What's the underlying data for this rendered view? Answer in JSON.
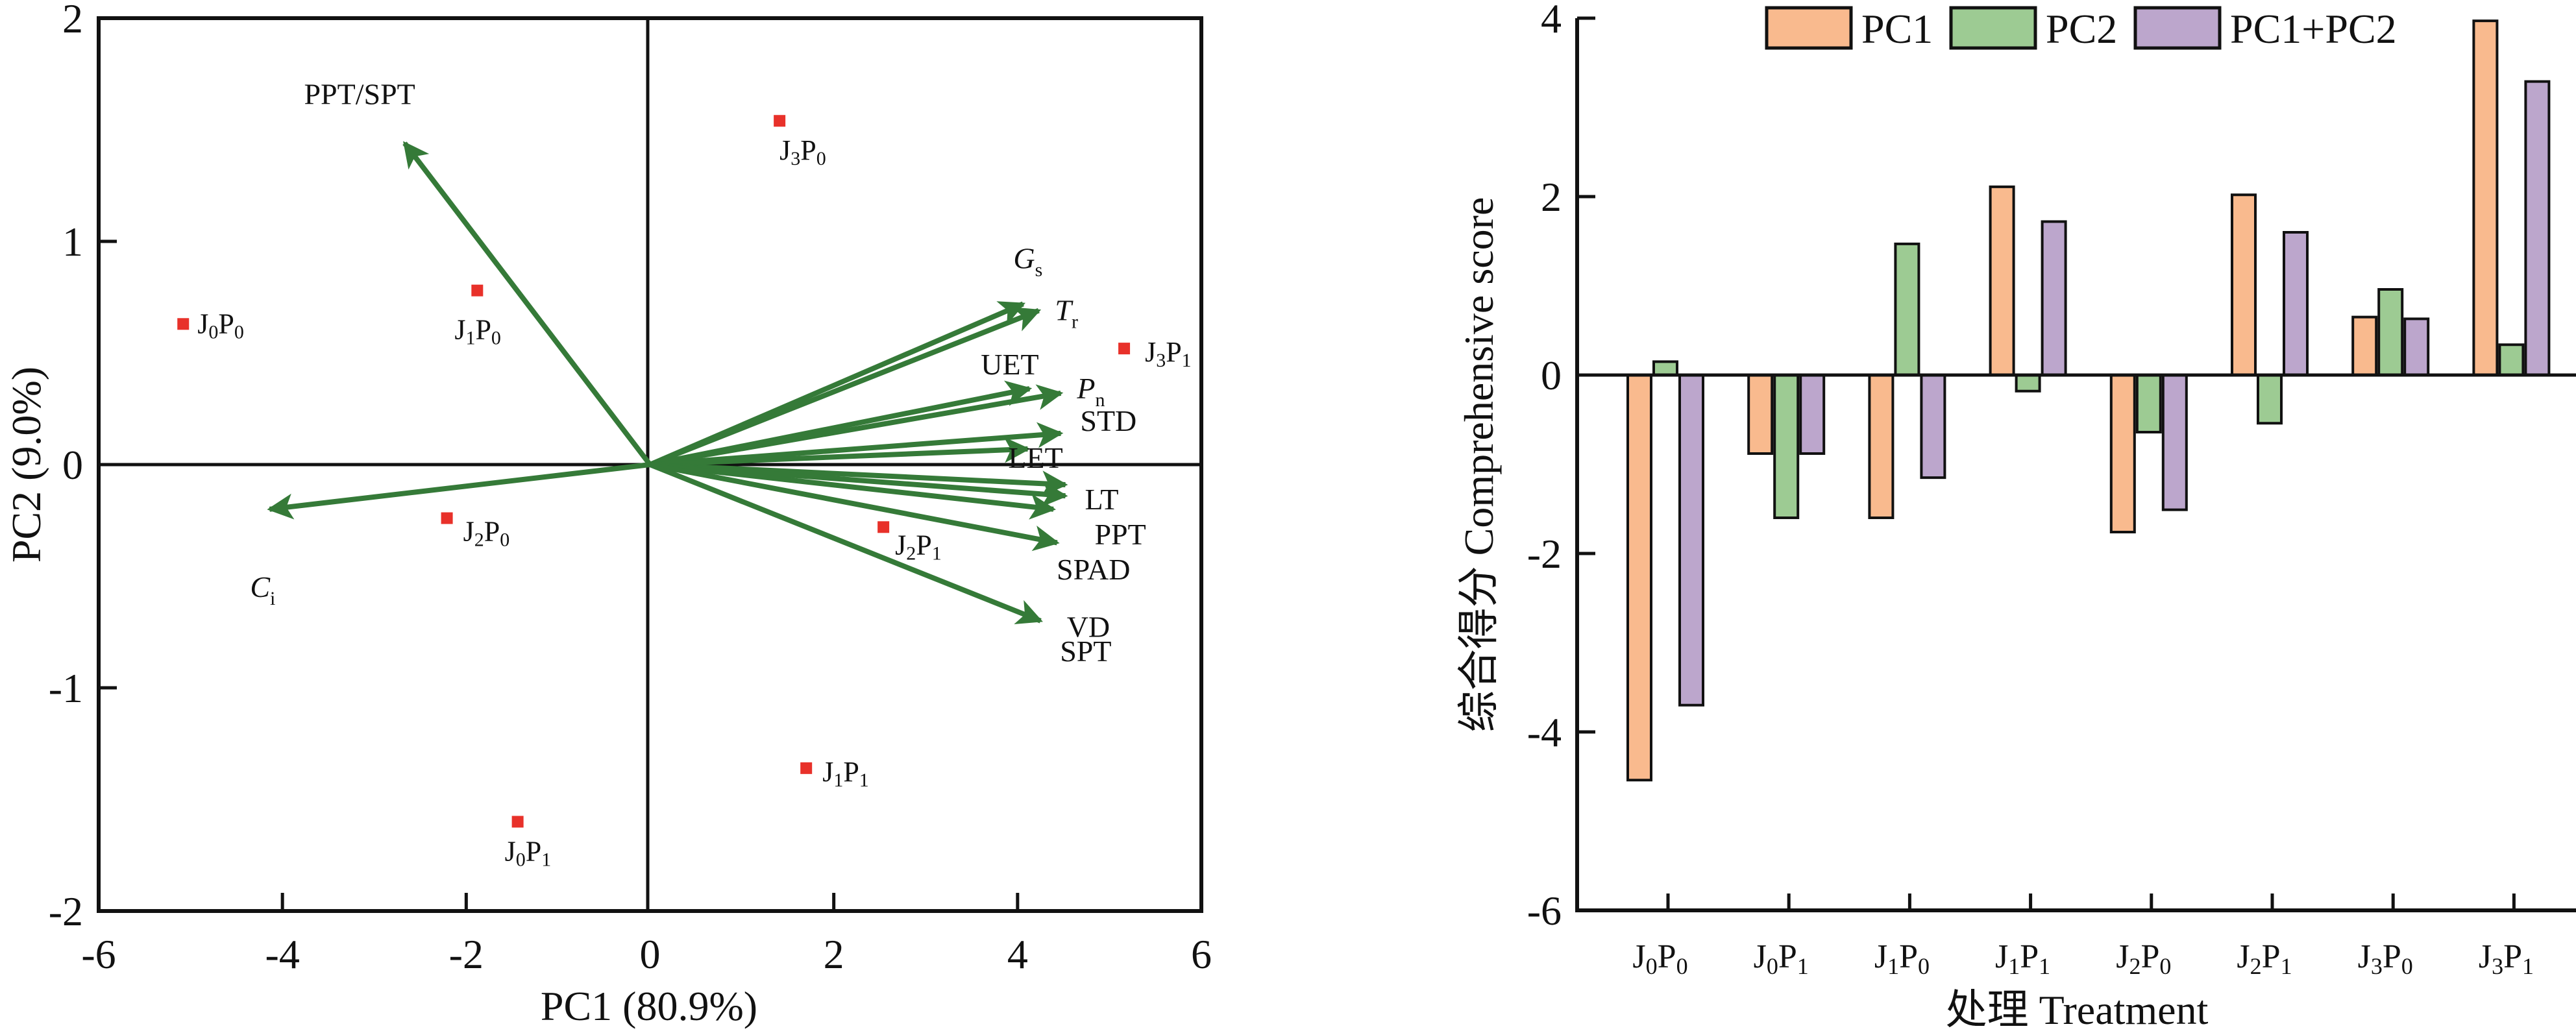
{
  "figure": {
    "panels": [
      "pca-biplot",
      "score-bar-chart"
    ]
  },
  "chart_data": [
    {
      "type": "scatter",
      "subtype": "biplot",
      "title": "",
      "xlabel": "PC1 (80.9%)",
      "ylabel": "PC2 (9.0%)",
      "xlim": [
        -6,
        6
      ],
      "ylim": [
        -2,
        2
      ],
      "xticks": [
        "-6",
        "-4",
        "-2",
        "0",
        "2",
        "4",
        "6"
      ],
      "yticks": [
        "-2",
        "-1",
        "0",
        "1",
        "2"
      ],
      "xtick_values": [
        -6,
        -4,
        -2,
        0,
        2,
        4,
        6
      ],
      "ytick_values": [
        -2,
        -1,
        0,
        1,
        2
      ],
      "grid": false,
      "marker_color": "#E8312A",
      "arrow_color": "#357A38",
      "points": [
        {
          "label": "J",
          "sub1": "0",
          "mid": "P",
          "sub2": "0",
          "name": "J0P0",
          "x": -5.08,
          "y": 0.63
        },
        {
          "label": "J",
          "sub1": "0",
          "mid": "P",
          "sub2": "1",
          "name": "J0P1",
          "x": -1.44,
          "y": -1.6
        },
        {
          "label": "J",
          "sub1": "1",
          "mid": "P",
          "sub2": "0",
          "name": "J1P0",
          "x": -1.88,
          "y": 0.78
        },
        {
          "label": "J",
          "sub1": "1",
          "mid": "P",
          "sub2": "1",
          "name": "J1P1",
          "x": 1.7,
          "y": -1.36
        },
        {
          "label": "J",
          "sub1": "2",
          "mid": "P",
          "sub2": "0",
          "name": "J2P0",
          "x": -2.21,
          "y": -0.24
        },
        {
          "label": "J",
          "sub1": "2",
          "mid": "P",
          "sub2": "1",
          "name": "J2P1",
          "x": 2.54,
          "y": -0.28
        },
        {
          "label": "J",
          "sub1": "3",
          "mid": "P",
          "sub2": "0",
          "name": "J3P0",
          "x": 1.41,
          "y": 1.54
        },
        {
          "label": "J",
          "sub1": "3",
          "mid": "P",
          "sub2": "1",
          "name": "J3P1",
          "x": 5.16,
          "y": 0.52
        }
      ],
      "loadings": [
        {
          "label": "PPT/SPT",
          "sub": "",
          "italic": false,
          "x": -2.67,
          "y": 1.44
        },
        {
          "label": "C",
          "sub": "i",
          "italic": true,
          "x": -4.14,
          "y": -0.2
        },
        {
          "label": "G",
          "sub": "s",
          "italic": true,
          "x": 4.06,
          "y": 0.72
        },
        {
          "label": "T",
          "sub": "r",
          "italic": true,
          "x": 4.23,
          "y": 0.69
        },
        {
          "label": "UET",
          "sub": "",
          "italic": false,
          "x": 4.13,
          "y": 0.34
        },
        {
          "label": "P",
          "sub": "n",
          "italic": true,
          "x": 4.47,
          "y": 0.32
        },
        {
          "label": "STD",
          "sub": "",
          "italic": false,
          "x": 4.47,
          "y": 0.14
        },
        {
          "label": "LET",
          "sub": "",
          "italic": false,
          "x": 4.11,
          "y": 0.07
        },
        {
          "label": "LT",
          "sub": "",
          "italic": false,
          "x": 4.52,
          "y": -0.09
        },
        {
          "label": "PPT",
          "sub": "",
          "italic": false,
          "x": 4.52,
          "y": -0.14
        },
        {
          "label": "SPAD",
          "sub": "",
          "italic": false,
          "x": 4.39,
          "y": -0.2
        },
        {
          "label": "VD",
          "sub": "",
          "italic": false,
          "x": 4.43,
          "y": -0.35
        },
        {
          "label": "SPT",
          "sub": "",
          "italic": false,
          "x": 4.25,
          "y": -0.7
        }
      ]
    },
    {
      "type": "bar",
      "title": "",
      "xlabel": "处理 Treatment",
      "ylabel": "综合得分 Comprehensive score",
      "ylim": [
        -6,
        4
      ],
      "yticks": [
        "-6",
        "-4",
        "-2",
        "0",
        "2",
        "4"
      ],
      "ytick_values": [
        -6,
        -4,
        -2,
        0,
        2,
        4
      ],
      "grid": false,
      "legend_position": "top",
      "categories": [
        {
          "main1": "J",
          "sub1": "0",
          "main2": "P",
          "sub2": "0",
          "name": "J0P0"
        },
        {
          "main1": "J",
          "sub1": "0",
          "main2": "P",
          "sub2": "1",
          "name": "J0P1"
        },
        {
          "main1": "J",
          "sub1": "1",
          "main2": "P",
          "sub2": "0",
          "name": "J1P0"
        },
        {
          "main1": "J",
          "sub1": "1",
          "main2": "P",
          "sub2": "1",
          "name": "J1P1"
        },
        {
          "main1": "J",
          "sub1": "2",
          "main2": "P",
          "sub2": "0",
          "name": "J2P0"
        },
        {
          "main1": "J",
          "sub1": "2",
          "main2": "P",
          "sub2": "1",
          "name": "J2P1"
        },
        {
          "main1": "J",
          "sub1": "3",
          "main2": "P",
          "sub2": "0",
          "name": "J3P0"
        },
        {
          "main1": "J",
          "sub1": "3",
          "main2": "P",
          "sub2": "1",
          "name": "J3P1"
        }
      ],
      "series": [
        {
          "name": "PC1",
          "color": "#F9BA8E",
          "values": [
            -4.54,
            -0.88,
            -1.6,
            2.11,
            -1.76,
            2.02,
            0.65,
            3.97
          ]
        },
        {
          "name": "PC2",
          "color": "#9DCB93",
          "values": [
            0.15,
            -1.6,
            1.47,
            -0.18,
            -0.64,
            -0.54,
            0.96,
            0.34
          ]
        },
        {
          "name": "PC1+PC2",
          "color": "#BCA6CC",
          "values": [
            -3.7,
            -0.88,
            -1.15,
            1.72,
            -1.51,
            1.6,
            0.63,
            3.29
          ]
        }
      ]
    }
  ]
}
